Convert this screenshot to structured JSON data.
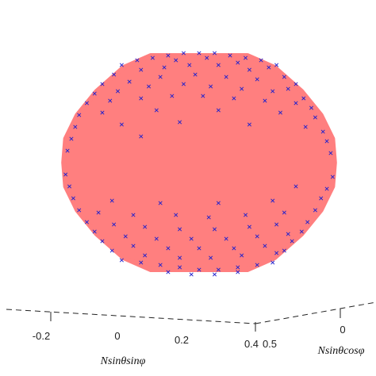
{
  "chart_data": {
    "type": "scatter",
    "projection": "3d",
    "title": "",
    "xlabel": "Nsinθsinφ",
    "ylabel": "Nsinθcosφ",
    "x_ticks": [
      "-0.2",
      "0",
      "0.2",
      "0.4"
    ],
    "y_ticks": [
      "0.5",
      "0"
    ],
    "shape": {
      "name": "sphere",
      "color": "#ff7f7f",
      "rows": [
        {
          "y": -0.45,
          "half_width": 0.25
        },
        {
          "y": -0.4,
          "half_width": 0.39
        },
        {
          "y": -0.3,
          "half_width": 0.53
        },
        {
          "y": -0.2,
          "half_width": 0.63
        },
        {
          "y": -0.1,
          "half_width": 0.69
        },
        {
          "y": 0.0,
          "half_width": 0.7
        },
        {
          "y": 0.1,
          "half_width": 0.69
        },
        {
          "y": 0.2,
          "half_width": 0.63
        },
        {
          "y": 0.3,
          "half_width": 0.53
        },
        {
          "y": 0.4,
          "half_width": 0.39
        },
        {
          "y": 0.45,
          "half_width": 0.25
        }
      ]
    },
    "series": [
      {
        "marker": "x",
        "color": "#2222cc",
        "points": [
          [
            -0.32,
            0.43
          ],
          [
            -0.24,
            0.44
          ],
          [
            -0.16,
            0.45
          ],
          [
            -0.08,
            0.46
          ],
          [
            0.0,
            0.46
          ],
          [
            0.08,
            0.46
          ],
          [
            0.16,
            0.45
          ],
          [
            0.24,
            0.44
          ],
          [
            0.32,
            0.43
          ],
          [
            0.4,
            0.41
          ],
          [
            -0.4,
            0.41
          ],
          [
            -0.12,
            0.43
          ],
          [
            0.04,
            0.44
          ],
          [
            0.2,
            0.42
          ],
          [
            0.36,
            0.4
          ],
          [
            -0.44,
            0.37
          ],
          [
            -0.3,
            0.39
          ],
          [
            -0.18,
            0.4
          ],
          [
            -0.05,
            0.41
          ],
          [
            0.1,
            0.41
          ],
          [
            0.26,
            0.39
          ],
          [
            0.44,
            0.36
          ],
          [
            0.5,
            0.33
          ],
          [
            -0.5,
            0.33
          ],
          [
            -0.36,
            0.34
          ],
          [
            -0.2,
            0.36
          ],
          [
            -0.02,
            0.37
          ],
          [
            0.14,
            0.36
          ],
          [
            0.3,
            0.35
          ],
          [
            0.46,
            0.31
          ],
          [
            -0.54,
            0.29
          ],
          [
            -0.42,
            0.3
          ],
          [
            -0.26,
            0.32
          ],
          [
            -0.08,
            0.33
          ],
          [
            0.06,
            0.32
          ],
          [
            0.22,
            0.31
          ],
          [
            0.38,
            0.3
          ],
          [
            0.54,
            0.27
          ],
          [
            -0.58,
            0.25
          ],
          [
            -0.46,
            0.26
          ],
          [
            -0.3,
            0.27
          ],
          [
            -0.14,
            0.28
          ],
          [
            0.02,
            0.28
          ],
          [
            0.18,
            0.27
          ],
          [
            0.34,
            0.26
          ],
          [
            0.5,
            0.25
          ],
          [
            0.58,
            0.23
          ],
          [
            -0.62,
            0.2
          ],
          [
            -0.5,
            0.21
          ],
          [
            -0.22,
            0.22
          ],
          [
            0.1,
            0.22
          ],
          [
            0.42,
            0.21
          ],
          [
            0.6,
            0.19
          ],
          [
            -0.64,
            0.15
          ],
          [
            -0.4,
            0.16
          ],
          [
            -0.1,
            0.17
          ],
          [
            0.26,
            0.16
          ],
          [
            0.55,
            0.15
          ],
          [
            0.64,
            0.13
          ],
          [
            -0.66,
            0.1
          ],
          [
            -0.3,
            0.11
          ],
          [
            0.66,
            0.09
          ],
          [
            -0.68,
            0.05
          ],
          [
            0.68,
            0.04
          ],
          [
            -0.69,
            -0.05
          ],
          [
            0.69,
            -0.06
          ],
          [
            -0.67,
            -0.1
          ],
          [
            0.5,
            -0.1
          ],
          [
            0.66,
            -0.11
          ],
          [
            -0.65,
            -0.15
          ],
          [
            -0.45,
            -0.16
          ],
          [
            -0.2,
            -0.17
          ],
          [
            0.1,
            -0.17
          ],
          [
            0.38,
            -0.16
          ],
          [
            0.63,
            -0.15
          ],
          [
            -0.62,
            -0.2
          ],
          [
            -0.52,
            -0.21
          ],
          [
            -0.34,
            -0.22
          ],
          [
            -0.12,
            -0.22
          ],
          [
            0.05,
            -0.23
          ],
          [
            0.24,
            -0.22
          ],
          [
            0.44,
            -0.21
          ],
          [
            0.6,
            -0.2
          ],
          [
            -0.58,
            -0.25
          ],
          [
            -0.44,
            -0.26
          ],
          [
            -0.28,
            -0.27
          ],
          [
            -0.1,
            -0.28
          ],
          [
            0.08,
            -0.28
          ],
          [
            0.26,
            -0.27
          ],
          [
            0.4,
            -0.26
          ],
          [
            0.56,
            -0.25
          ],
          [
            -0.54,
            -0.29
          ],
          [
            -0.38,
            -0.31
          ],
          [
            -0.22,
            -0.32
          ],
          [
            -0.04,
            -0.32
          ],
          [
            0.14,
            -0.32
          ],
          [
            0.3,
            -0.31
          ],
          [
            0.46,
            -0.3
          ],
          [
            0.53,
            -0.29
          ],
          [
            -0.5,
            -0.33
          ],
          [
            -0.34,
            -0.35
          ],
          [
            -0.16,
            -0.36
          ],
          [
            0.0,
            -0.36
          ],
          [
            0.18,
            -0.36
          ],
          [
            0.34,
            -0.35
          ],
          [
            0.48,
            -0.33
          ],
          [
            -0.45,
            -0.37
          ],
          [
            -0.28,
            -0.39
          ],
          [
            -0.1,
            -0.4
          ],
          [
            0.06,
            -0.4
          ],
          [
            0.22,
            -0.39
          ],
          [
            0.4,
            -0.38
          ],
          [
            0.44,
            -0.37
          ],
          [
            -0.4,
            -0.41
          ],
          [
            -0.3,
            -0.42
          ],
          [
            -0.2,
            -0.43
          ],
          [
            -0.1,
            -0.44
          ],
          [
            0.0,
            -0.45
          ],
          [
            0.1,
            -0.45
          ],
          [
            0.2,
            -0.44
          ],
          [
            0.3,
            -0.43
          ],
          [
            0.38,
            -0.42
          ],
          [
            -0.16,
            -0.46
          ],
          [
            -0.04,
            -0.47
          ],
          [
            0.08,
            -0.47
          ],
          [
            0.2,
            -0.46
          ]
        ]
      }
    ]
  }
}
